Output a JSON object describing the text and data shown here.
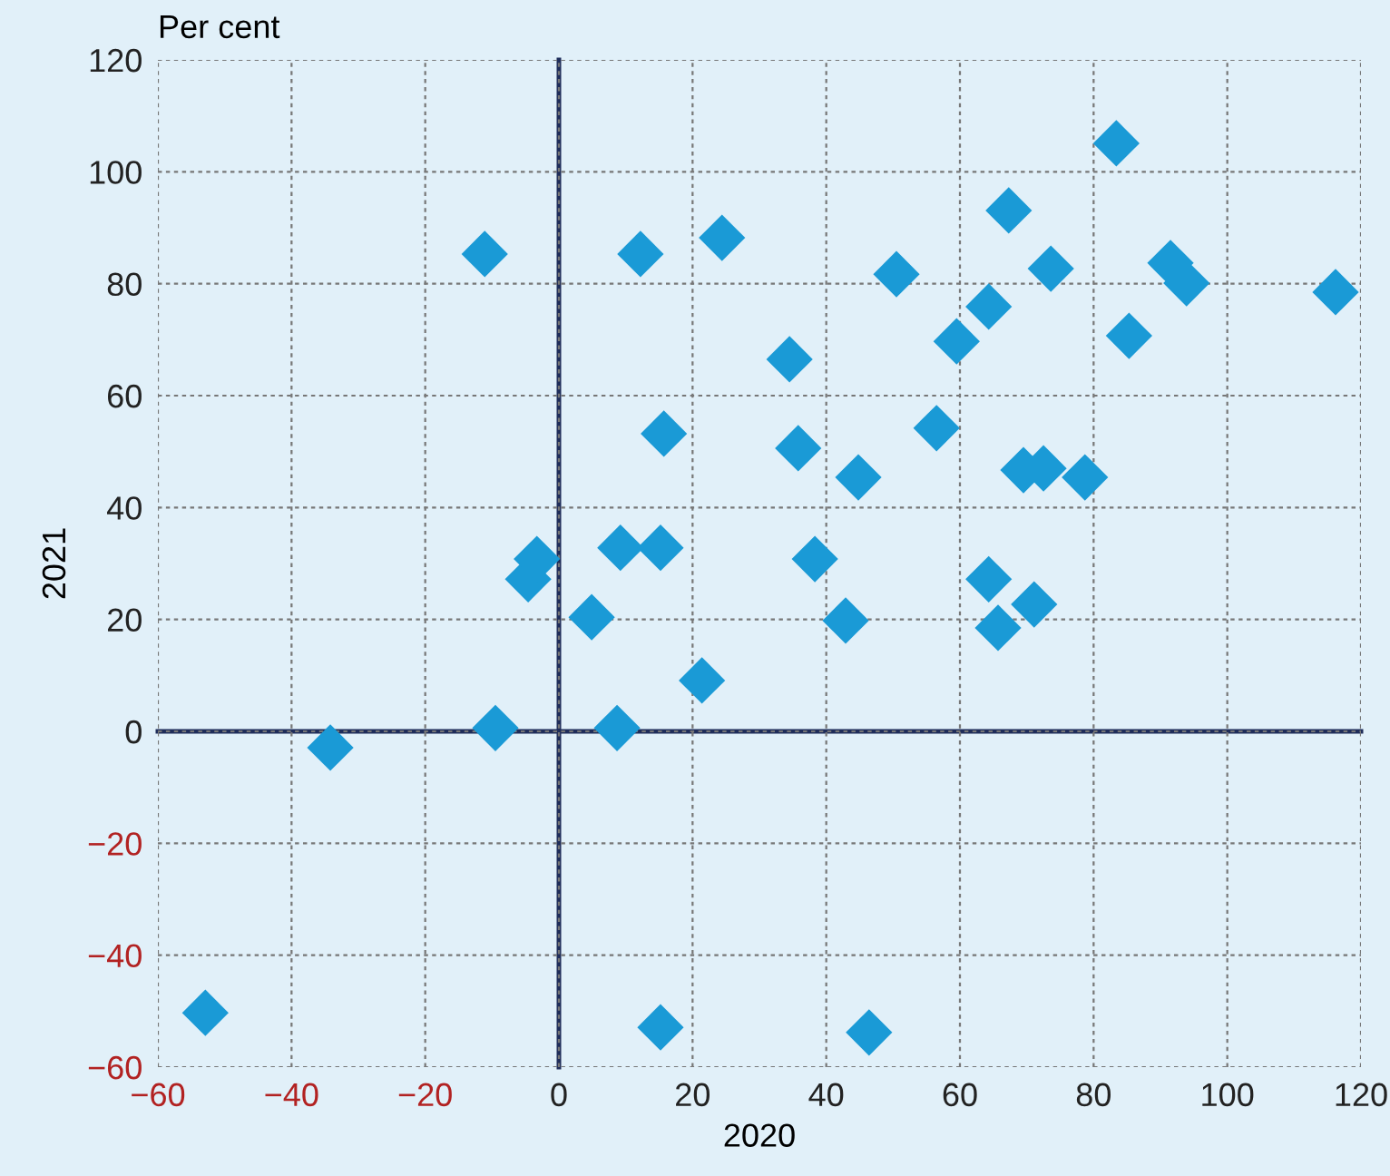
{
  "chart_data": {
    "type": "scatter",
    "xlabel": "2020",
    "ylabel": "2021",
    "annotations": [
      "Per cent"
    ],
    "x": [
      -52.9,
      -34.2,
      -11.1,
      -9.5,
      -4.6,
      -3.3,
      4.9,
      8.7,
      9.2,
      12.2,
      15.2,
      15.7,
      15.2,
      21.4,
      24.4,
      34.5,
      35.8,
      38.3,
      42.9,
      44.8,
      46.4,
      50.5,
      56.5,
      59.5,
      64.3,
      64.3,
      65.7,
      67.3,
      69.5,
      71.1,
      72.5,
      73.6,
      78.7,
      83.4,
      85.3,
      91.5,
      93.9,
      116.2
    ],
    "series": [
      {
        "color": "#1a9ad6",
        "values": [
          -50.3,
          -2.9,
          85.3,
          0.6,
          27.2,
          30.8,
          20.4,
          0.6,
          32.8,
          85.3,
          32.8,
          53.2,
          -52.9,
          9.1,
          88.2,
          66.5,
          50.6,
          30.8,
          19.8,
          45.4,
          -53.8,
          81.7,
          54.2,
          69.7,
          75.9,
          27.2,
          18.5,
          93.1,
          46.7,
          22.7,
          47.0,
          82.7,
          45.4,
          105.1,
          70.7,
          83.7,
          80.1,
          78.5
        ]
      }
    ],
    "marker": "diamond",
    "grid": true,
    "xlim": [
      -60,
      120
    ],
    "ylim": [
      -60,
      120
    ],
    "xticks": [
      {
        "value": -60,
        "label": "−60"
      },
      {
        "value": -40,
        "label": "−40"
      },
      {
        "value": -20,
        "label": "−20"
      },
      0,
      20,
      40,
      60,
      80,
      100,
      120
    ],
    "yticks": [
      {
        "value": -60,
        "label": "−60"
      },
      {
        "value": -40,
        "label": "−40"
      },
      {
        "value": -20,
        "label": "−20"
      },
      0,
      20,
      40,
      60,
      80,
      100,
      120
    ]
  }
}
